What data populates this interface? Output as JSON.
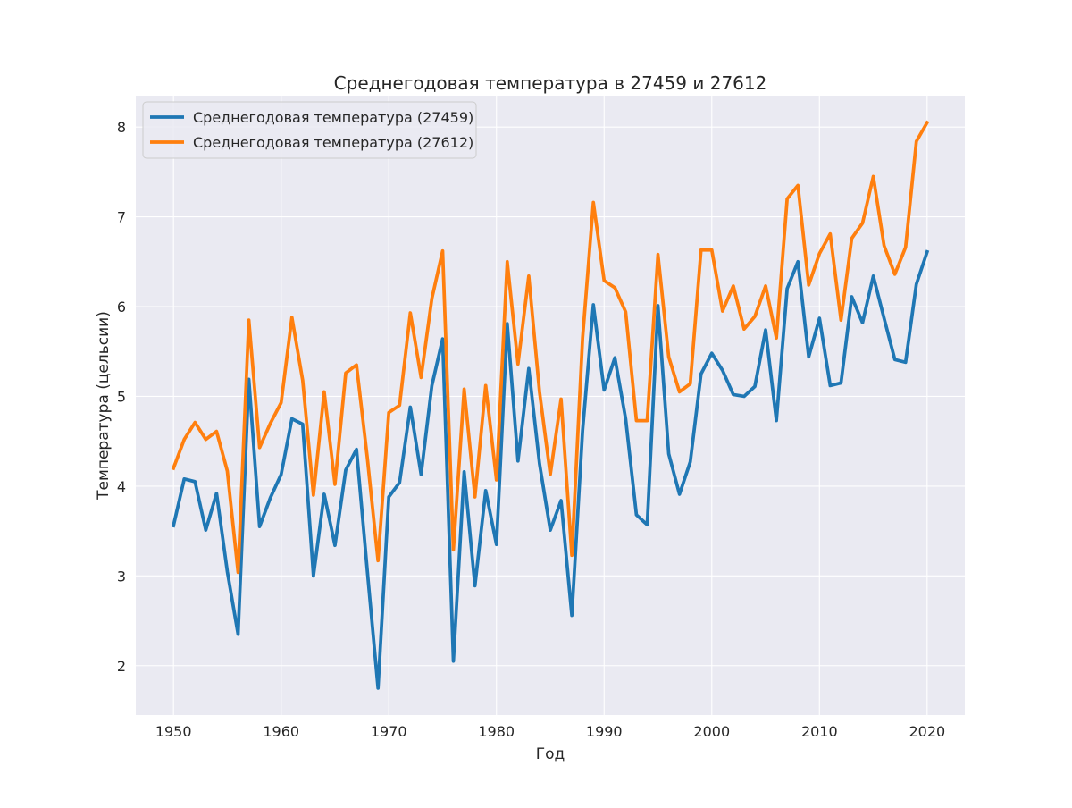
{
  "chart_data": {
    "type": "line",
    "title": "Среднегодовая температура в 27459 и 27612",
    "xlabel": "Год",
    "ylabel": "Температура (цельсии)",
    "xlim": [
      1946.5,
      2023.5
    ],
    "ylim": [
      1.45,
      8.35
    ],
    "xticks": [
      1950,
      1960,
      1970,
      1980,
      1990,
      2000,
      2010,
      2020
    ],
    "yticks": [
      2,
      3,
      4,
      5,
      6,
      7,
      8
    ],
    "grid": true,
    "legend_position": "top-left",
    "x": [
      1950,
      1951,
      1952,
      1953,
      1954,
      1955,
      1956,
      1957,
      1958,
      1959,
      1960,
      1961,
      1962,
      1963,
      1964,
      1965,
      1966,
      1967,
      1968,
      1969,
      1970,
      1971,
      1972,
      1973,
      1974,
      1975,
      1976,
      1977,
      1978,
      1979,
      1980,
      1981,
      1982,
      1983,
      1984,
      1985,
      1986,
      1987,
      1988,
      1989,
      1990,
      1991,
      1992,
      1993,
      1994,
      1995,
      1996,
      1997,
      1998,
      1999,
      2000,
      2001,
      2002,
      2003,
      2004,
      2005,
      2006,
      2007,
      2008,
      2009,
      2010,
      2011,
      2012,
      2013,
      2014,
      2015,
      2016,
      2017,
      2018,
      2019,
      2020
    ],
    "series": [
      {
        "name": "Среднегодовая температура (27459)",
        "color": "#1f77b4",
        "values": [
          3.56,
          4.08,
          4.05,
          3.51,
          3.92,
          3.05,
          2.35,
          5.19,
          3.55,
          3.87,
          4.13,
          4.75,
          4.69,
          3.0,
          3.91,
          3.34,
          4.18,
          4.41,
          3.06,
          1.75,
          3.88,
          4.04,
          4.88,
          4.13,
          5.12,
          5.64,
          2.05,
          4.16,
          2.89,
          3.95,
          3.35,
          5.81,
          4.28,
          5.31,
          4.25,
          3.51,
          3.84,
          2.56,
          4.62,
          6.02,
          5.07,
          5.43,
          4.75,
          3.68,
          3.57,
          6.01,
          4.36,
          3.91,
          4.27,
          5.25,
          5.48,
          5.29,
          5.02,
          5.0,
          5.11,
          5.74,
          4.73,
          6.2,
          6.5,
          5.44,
          5.87,
          5.12,
          5.15,
          6.11,
          5.82,
          6.34,
          5.87,
          5.41,
          5.38,
          6.25,
          6.61
        ]
      },
      {
        "name": "Среднегодовая температура (27612)",
        "color": "#ff7f0e",
        "values": [
          4.2,
          4.52,
          4.71,
          4.52,
          4.61,
          4.17,
          3.04,
          5.85,
          4.43,
          4.7,
          4.93,
          5.88,
          5.18,
          3.9,
          5.05,
          4.02,
          5.26,
          5.35,
          4.32,
          3.17,
          4.82,
          4.9,
          5.93,
          5.21,
          6.09,
          6.62,
          3.29,
          5.08,
          3.88,
          5.12,
          4.07,
          6.5,
          5.36,
          6.34,
          5.05,
          4.13,
          4.97,
          3.23,
          5.65,
          7.16,
          6.29,
          6.21,
          5.94,
          4.73,
          4.73,
          6.58,
          5.44,
          5.05,
          5.14,
          6.63,
          6.63,
          5.95,
          6.23,
          5.75,
          5.89,
          6.23,
          5.65,
          7.2,
          7.35,
          6.24,
          6.59,
          6.81,
          5.85,
          6.76,
          6.93,
          7.45,
          6.68,
          6.36,
          6.66,
          7.84,
          8.05
        ]
      }
    ]
  }
}
